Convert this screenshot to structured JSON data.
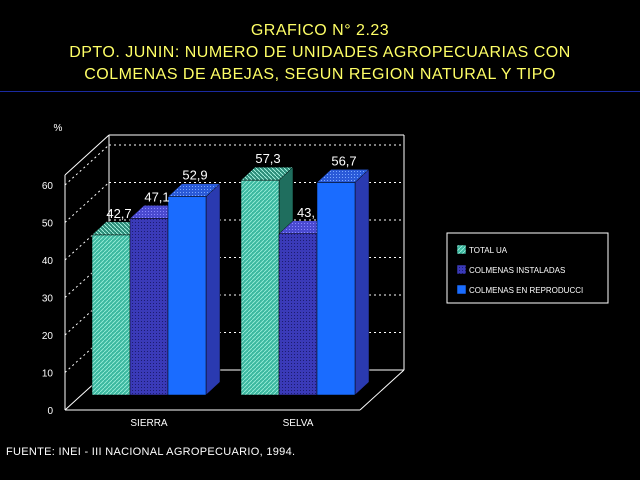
{
  "header": {
    "line1": "GRAFICO N° 2.23",
    "line2": "DPTO. JUNIN: NUMERO DE UNIDADES AGROPECUARIAS CON",
    "line3": "COLMENAS DE ABEJAS, SEGUN REGION NATURAL Y TIPO"
  },
  "colors": {
    "background": "#000000",
    "title": "#ffff66",
    "rule": "#1a2aa0",
    "total_ua": "#3cb8a0",
    "colmenas_instaladas": "#3a3ab8",
    "colmenas_reproduccion": "#1a6cff"
  },
  "chart_data": {
    "type": "bar",
    "ylabel": "%",
    "ylim": [
      0,
      60
    ],
    "yticks": [
      "0",
      "10",
      "20",
      "30",
      "40",
      "50",
      "60"
    ],
    "categories": [
      "SIERRA",
      "SELVA"
    ],
    "series": [
      {
        "name": "TOTAL UA",
        "values": [
          42.7,
          57.3
        ],
        "labels": [
          "42,7",
          "57,3"
        ],
        "color": "#3cb8a0"
      },
      {
        "name": "COLMENAS INSTALADAS",
        "values": [
          47.1,
          43.0
        ],
        "labels": [
          "47,1",
          "43,"
        ],
        "color": "#3a3ab8"
      },
      {
        "name": "COLMENAS EN REPRODUCCI",
        "values": [
          52.9,
          56.7
        ],
        "labels": [
          "52,9",
          "56,7"
        ],
        "color": "#1a6cff"
      }
    ],
    "legend_position": "right",
    "grid": true
  },
  "source": "FUENTE: INEI - III NACIONAL AGROPECUARIO, 1994."
}
